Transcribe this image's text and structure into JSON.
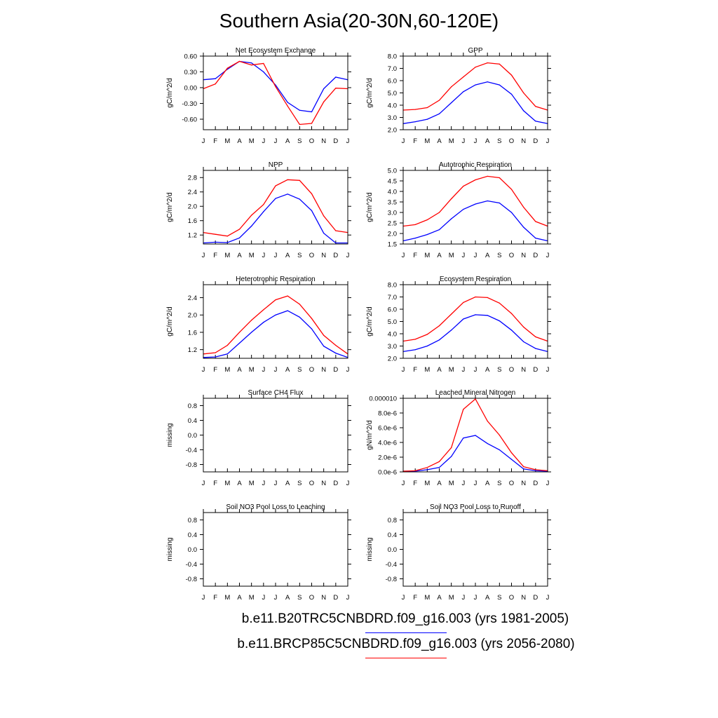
{
  "figure": {
    "title": "Southern Asia(20-30N,60-120E)",
    "legend": [
      {
        "label": "b.e11.B20TRC5CNBDRD.f09_g16.003 (yrs 1981-2005)",
        "color": "#0000ff"
      },
      {
        "label": "b.e11.BRCP85C5CNBDRD.f09_g16.003 (yrs 2056-2080)",
        "color": "#ff0000"
      }
    ],
    "months": [
      "J",
      "F",
      "M",
      "A",
      "M",
      "J",
      "J",
      "A",
      "S",
      "O",
      "N",
      "D",
      "J"
    ],
    "series_colors": [
      "#0000ff",
      "#ff0000"
    ]
  },
  "chart_data": [
    {
      "type": "line",
      "title": "Net Ecosystem Exchange",
      "ylabel": "gC/m^2/d",
      "categories": [
        "J",
        "F",
        "M",
        "A",
        "M",
        "J",
        "J",
        "A",
        "S",
        "O",
        "N",
        "D",
        "J"
      ],
      "ylim": [
        -0.8,
        0.6
      ],
      "yticks": [
        -0.6,
        -0.3,
        0.0,
        0.3,
        0.6
      ],
      "ytick_labels": [
        "-0.60",
        "-0.30",
        "0.00",
        "0.30",
        "0.60"
      ],
      "series": [
        {
          "values": [
            0.15,
            0.17,
            0.35,
            0.5,
            0.47,
            0.3,
            0.05,
            -0.28,
            -0.43,
            -0.46,
            -0.02,
            0.2,
            0.15
          ]
        },
        {
          "values": [
            -0.02,
            0.07,
            0.37,
            0.5,
            0.43,
            0.46,
            0.02,
            -0.35,
            -0.7,
            -0.68,
            -0.27,
            -0.01,
            -0.02
          ]
        }
      ]
    },
    {
      "type": "line",
      "title": "GPP",
      "ylabel": "gC/m^2/d",
      "categories": [
        "J",
        "F",
        "M",
        "A",
        "M",
        "J",
        "J",
        "A",
        "S",
        "O",
        "N",
        "D",
        "J"
      ],
      "ylim": [
        2.0,
        8.0
      ],
      "yticks": [
        2,
        3,
        4,
        5,
        6,
        7,
        8
      ],
      "ytick_labels": [
        "2.0",
        "3.0",
        "4.0",
        "5.0",
        "6.0",
        "7.0",
        "8.0"
      ],
      "series": [
        {
          "values": [
            2.5,
            2.65,
            2.85,
            3.3,
            4.2,
            5.1,
            5.65,
            5.9,
            5.65,
            4.9,
            3.55,
            2.7,
            2.5
          ]
        },
        {
          "values": [
            3.6,
            3.65,
            3.8,
            4.4,
            5.5,
            6.3,
            7.1,
            7.45,
            7.35,
            6.45,
            5.0,
            3.9,
            3.6
          ]
        }
      ]
    },
    {
      "type": "line",
      "title": "NPP",
      "ylabel": "gC/m^2/d",
      "categories": [
        "J",
        "F",
        "M",
        "A",
        "M",
        "J",
        "J",
        "A",
        "S",
        "O",
        "N",
        "D",
        "J"
      ],
      "ylim": [
        0.95,
        3.0
      ],
      "yticks": [
        1.2,
        1.6,
        2.0,
        2.4,
        2.8
      ],
      "ytick_labels": [
        "1.2",
        "1.6",
        "2.0",
        "2.4",
        "2.8"
      ],
      "series": [
        {
          "values": [
            0.98,
            1.0,
            0.99,
            1.12,
            1.45,
            1.85,
            2.22,
            2.34,
            2.2,
            1.88,
            1.25,
            0.98,
            0.98
          ]
        },
        {
          "values": [
            1.27,
            1.22,
            1.17,
            1.36,
            1.75,
            2.05,
            2.57,
            2.74,
            2.72,
            2.35,
            1.73,
            1.32,
            1.27
          ]
        }
      ]
    },
    {
      "type": "line",
      "title": "Autotrophic Respiration",
      "ylabel": "gC/m^2/d",
      "categories": [
        "J",
        "F",
        "M",
        "A",
        "M",
        "J",
        "J",
        "A",
        "S",
        "O",
        "N",
        "D",
        "J"
      ],
      "ylim": [
        1.5,
        5.0
      ],
      "yticks": [
        1.5,
        2.0,
        2.5,
        3.0,
        3.5,
        4.0,
        4.5,
        5.0
      ],
      "ytick_labels": [
        "1.5",
        "2.0",
        "2.5",
        "3.0",
        "3.5",
        "4.0",
        "4.5",
        "5.0"
      ],
      "series": [
        {
          "values": [
            1.65,
            1.78,
            1.95,
            2.18,
            2.7,
            3.15,
            3.4,
            3.55,
            3.45,
            3.0,
            2.3,
            1.78,
            1.65
          ]
        },
        {
          "values": [
            2.35,
            2.42,
            2.65,
            3.0,
            3.65,
            4.25,
            4.55,
            4.72,
            4.65,
            4.1,
            3.25,
            2.57,
            2.35
          ]
        }
      ]
    },
    {
      "type": "line",
      "title": "Heterotrophic Respiration",
      "ylabel": "gC/m^2/d",
      "categories": [
        "J",
        "F",
        "M",
        "A",
        "M",
        "J",
        "J",
        "A",
        "S",
        "O",
        "N",
        "D",
        "J"
      ],
      "ylim": [
        1.0,
        2.7
      ],
      "yticks": [
        1.2,
        1.6,
        2.0,
        2.4
      ],
      "ytick_labels": [
        "1.2",
        "1.6",
        "2.0",
        "2.4"
      ],
      "series": [
        {
          "values": [
            1.02,
            1.03,
            1.1,
            1.35,
            1.6,
            1.83,
            2.0,
            2.1,
            1.95,
            1.68,
            1.28,
            1.12,
            1.02
          ]
        },
        {
          "values": [
            1.1,
            1.13,
            1.3,
            1.6,
            1.88,
            2.12,
            2.35,
            2.44,
            2.25,
            1.92,
            1.53,
            1.3,
            1.1
          ]
        }
      ]
    },
    {
      "type": "line",
      "title": "Ecosystem Respiration",
      "ylabel": "gC/m^2/d",
      "categories": [
        "J",
        "F",
        "M",
        "A",
        "M",
        "J",
        "J",
        "A",
        "S",
        "O",
        "N",
        "D",
        "J"
      ],
      "ylim": [
        2.0,
        8.0
      ],
      "yticks": [
        2,
        3,
        4,
        5,
        6,
        7,
        8
      ],
      "ytick_labels": [
        "2.0",
        "3.0",
        "4.0",
        "5.0",
        "6.0",
        "7.0",
        "8.0"
      ],
      "series": [
        {
          "values": [
            2.55,
            2.7,
            3.0,
            3.5,
            4.3,
            5.2,
            5.55,
            5.5,
            5.05,
            4.3,
            3.35,
            2.8,
            2.55
          ]
        },
        {
          "values": [
            3.4,
            3.55,
            3.95,
            4.65,
            5.6,
            6.55,
            7.0,
            6.95,
            6.5,
            5.65,
            4.55,
            3.75,
            3.4
          ]
        }
      ]
    },
    {
      "type": "line",
      "title": "Surface CH4 Flux",
      "ylabel": "missing",
      "categories": [
        "J",
        "F",
        "M",
        "A",
        "M",
        "J",
        "J",
        "A",
        "S",
        "O",
        "N",
        "D",
        "J"
      ],
      "ylim": [
        -1.0,
        1.0
      ],
      "yticks": [
        -0.8,
        -0.4,
        0.0,
        0.4,
        0.8
      ],
      "ytick_labels": [
        "-0.8",
        "-0.4",
        "0.0",
        "0.4",
        "0.8"
      ],
      "series": []
    },
    {
      "type": "line",
      "title": "Leached Mineral Nitrogen",
      "ylabel": "gN/m^2/d",
      "categories": [
        "J",
        "F",
        "M",
        "A",
        "M",
        "J",
        "J",
        "A",
        "S",
        "O",
        "N",
        "D",
        "J"
      ],
      "ylim": [
        0.0,
        1e-05
      ],
      "yticks": [
        0.0,
        2e-06,
        4e-06,
        6e-06,
        8e-06,
        1e-05
      ],
      "ytick_labels": [
        "0.0e-6",
        "2.0e-6",
        "4.0e-6",
        "6.0e-6",
        "8.0e-6",
        "0.000010"
      ],
      "series": [
        {
          "values": [
            1e-07,
            1e-07,
            3e-07,
            6e-07,
            2.1e-06,
            4.6e-06,
            4.95e-06,
            3.85e-06,
            3e-06,
            1.7e-06,
            4e-07,
            1.5e-07,
            1e-07
          ]
        },
        {
          "values": [
            1e-07,
            1.5e-07,
            6e-07,
            1.4e-06,
            3.3e-06,
            8.5e-06,
            9.9e-06,
            6.9e-06,
            5e-06,
            2.6e-06,
            7e-07,
            3e-07,
            1.5e-07
          ]
        }
      ]
    },
    {
      "type": "line",
      "title": "Soil NO3 Pool Loss to Leaching",
      "ylabel": "missing",
      "categories": [
        "J",
        "F",
        "M",
        "A",
        "M",
        "J",
        "J",
        "A",
        "S",
        "O",
        "N",
        "D",
        "J"
      ],
      "ylim": [
        -1.0,
        1.0
      ],
      "yticks": [
        -0.8,
        -0.4,
        0.0,
        0.4,
        0.8
      ],
      "ytick_labels": [
        "-0.8",
        "-0.4",
        "0.0",
        "0.4",
        "0.8"
      ],
      "series": []
    },
    {
      "type": "line",
      "title": "Soil NO3 Pool Loss to Runoff",
      "ylabel": "missing",
      "categories": [
        "J",
        "F",
        "M",
        "A",
        "M",
        "J",
        "J",
        "A",
        "S",
        "O",
        "N",
        "D",
        "J"
      ],
      "ylim": [
        -1.0,
        1.0
      ],
      "yticks": [
        -0.8,
        -0.4,
        0.0,
        0.4,
        0.8
      ],
      "ytick_labels": [
        "-0.8",
        "-0.4",
        "0.0",
        "0.4",
        "0.8"
      ],
      "series": []
    }
  ]
}
